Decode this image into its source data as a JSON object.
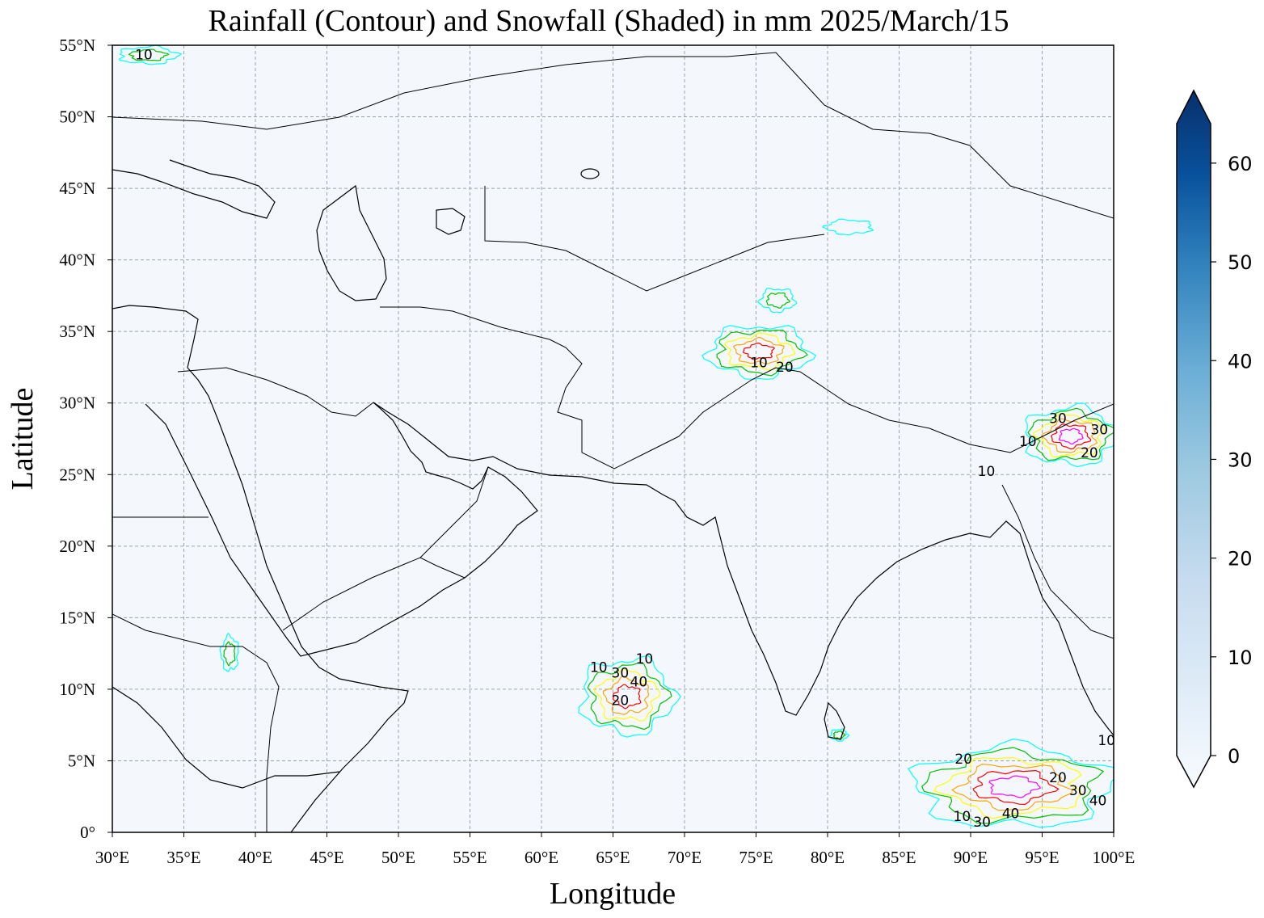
{
  "title": "Rainfall (Contour) and Snowfall (Shaded) in mm  2025/March/15",
  "xlabel": "Longitude",
  "ylabel": "Latitude",
  "colors": {
    "ocean": "#f4f8fd",
    "land": "#f5f9fd",
    "contour_levels": [
      "#00ffff",
      "#00c000",
      "#ffff00",
      "#ffa500",
      "#ff0000",
      "#ff00ff"
    ],
    "colorbar_low": "#f7fbff",
    "colorbar_high": "#08306b"
  },
  "map": {
    "extent": {
      "lon_min": 30,
      "lon_max": 100,
      "lat_min": 0,
      "lat_max": 55
    },
    "lon_ticks": [
      {
        "value": 30,
        "label": "30°E"
      },
      {
        "value": 35,
        "label": "35°E"
      },
      {
        "value": 40,
        "label": "40°E"
      },
      {
        "value": 45,
        "label": "45°E"
      },
      {
        "value": 50,
        "label": "50°E"
      },
      {
        "value": 55,
        "label": "55°E"
      },
      {
        "value": 60,
        "label": "60°E"
      },
      {
        "value": 65,
        "label": "65°E"
      },
      {
        "value": 70,
        "label": "70°E"
      },
      {
        "value": 75,
        "label": "75°E"
      },
      {
        "value": 80,
        "label": "80°E"
      },
      {
        "value": 85,
        "label": "85°E"
      },
      {
        "value": 90,
        "label": "90°E"
      },
      {
        "value": 95,
        "label": "95°E"
      },
      {
        "value": 100,
        "label": "100°E"
      }
    ],
    "lat_ticks": [
      {
        "value": 0,
        "label": "0°"
      },
      {
        "value": 5,
        "label": "5°N"
      },
      {
        "value": 10,
        "label": "10°N"
      },
      {
        "value": 15,
        "label": "15°N"
      },
      {
        "value": 20,
        "label": "20°N"
      },
      {
        "value": 25,
        "label": "25°N"
      },
      {
        "value": 30,
        "label": "30°N"
      },
      {
        "value": 35,
        "label": "35°N"
      },
      {
        "value": 40,
        "label": "40°N"
      },
      {
        "value": 45,
        "label": "45°N"
      },
      {
        "value": 50,
        "label": "50°N"
      },
      {
        "value": 55,
        "label": "55°N"
      }
    ],
    "gridlines": true,
    "contour_labels": [
      {
        "lon": 32.2,
        "lat": 54.0,
        "text": "10"
      },
      {
        "lon": 75.2,
        "lat": 32.5,
        "text": "10"
      },
      {
        "lon": 77.0,
        "lat": 32.2,
        "text": "20"
      },
      {
        "lon": 64.0,
        "lat": 11.2,
        "text": "10"
      },
      {
        "lon": 65.5,
        "lat": 10.8,
        "text": "30"
      },
      {
        "lon": 66.8,
        "lat": 10.2,
        "text": "40"
      },
      {
        "lon": 67.2,
        "lat": 11.8,
        "text": "10"
      },
      {
        "lon": 65.5,
        "lat": 8.9,
        "text": "20"
      },
      {
        "lon": 94.0,
        "lat": 27.0,
        "text": "10"
      },
      {
        "lon": 96.1,
        "lat": 28.6,
        "text": "30"
      },
      {
        "lon": 99.0,
        "lat": 27.8,
        "text": "30"
      },
      {
        "lon": 98.3,
        "lat": 26.2,
        "text": "20"
      },
      {
        "lon": 91.1,
        "lat": 24.9,
        "text": "10"
      },
      {
        "lon": 89.5,
        "lat": 4.8,
        "text": "20"
      },
      {
        "lon": 96.1,
        "lat": 3.5,
        "text": "20"
      },
      {
        "lon": 97.5,
        "lat": 2.6,
        "text": "30"
      },
      {
        "lon": 98.9,
        "lat": 1.9,
        "text": "40"
      },
      {
        "lon": 99.5,
        "lat": 6.1,
        "text": "10"
      },
      {
        "lon": 89.4,
        "lat": 0.8,
        "text": "10"
      },
      {
        "lon": 90.8,
        "lat": 0.4,
        "text": "30"
      },
      {
        "lon": 92.8,
        "lat": 1.0,
        "text": "40"
      }
    ],
    "precip_regions": [
      {
        "name": "western-himalaya",
        "lon": 75.2,
        "lat": 33.6,
        "rx": 3.5,
        "ry": 1.8,
        "max_level": 5
      },
      {
        "name": "arabian-sea-cell",
        "lon": 66.0,
        "lat": 9.5,
        "rx": 3.2,
        "ry": 2.6,
        "max_level": 5
      },
      {
        "name": "northeast-india",
        "lon": 97.0,
        "lat": 27.7,
        "rx": 3.2,
        "ry": 2.0,
        "max_level": 6
      },
      {
        "name": "andaman-sea",
        "lon": 93.0,
        "lat": 3.2,
        "rx": 6.8,
        "ry": 2.8,
        "max_level": 6
      },
      {
        "name": "east-africa",
        "lon": 38.2,
        "lat": 12.5,
        "rx": 0.6,
        "ry": 1.2,
        "max_level": 2
      },
      {
        "name": "tien-shan",
        "lon": 81.5,
        "lat": 42.3,
        "rx": 1.6,
        "ry": 0.5,
        "max_level": 1
      },
      {
        "name": "pamir",
        "lon": 76.5,
        "lat": 37.2,
        "rx": 1.2,
        "ry": 0.8,
        "max_level": 2
      },
      {
        "name": "sri-lanka",
        "lon": 80.8,
        "lat": 6.8,
        "rx": 0.6,
        "ry": 0.4,
        "max_level": 2
      },
      {
        "name": "black-sea-north",
        "lon": 32.5,
        "lat": 54.3,
        "rx": 2.0,
        "ry": 0.6,
        "max_level": 2
      }
    ]
  },
  "colorbar": {
    "vmin": 0,
    "vmax": 64,
    "ticks": [
      {
        "value": 0,
        "label": "0"
      },
      {
        "value": 10,
        "label": "10"
      },
      {
        "value": 20,
        "label": "20"
      },
      {
        "value": 30,
        "label": "30"
      },
      {
        "value": 40,
        "label": "40"
      },
      {
        "value": 50,
        "label": "50"
      },
      {
        "value": 60,
        "label": "60"
      }
    ]
  }
}
